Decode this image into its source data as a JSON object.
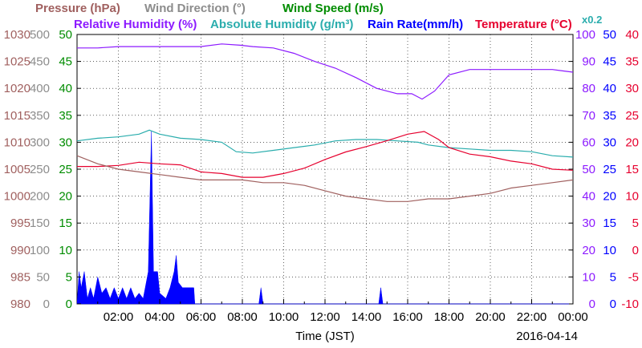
{
  "chart_data": {
    "type": "line",
    "headers": {
      "row1": [
        {
          "text": "Pressure (hPa)",
          "color": "#a0605f"
        },
        {
          "text": "Wind Direction (°)",
          "color": "#8c8c8c"
        },
        {
          "text": "Wind Speed (m/s)",
          "color": "#008c00"
        }
      ],
      "row2": [
        {
          "text": "Relative Humidity (%)",
          "color": "#8c1aff"
        },
        {
          "text": "Absolute Humidity (g/m³)",
          "color": "#2aadad"
        },
        {
          "text": "Rain Rate(mm/h)",
          "color": "#0000ff"
        },
        {
          "text": "Temperature (°C)",
          "color": "#e6002e"
        }
      ],
      "scale_note": {
        "text": "x0.2",
        "color": "#2aadad"
      }
    },
    "xlabel": "Time (JST)",
    "date": "2016-04-14",
    "x_ticks": [
      "02:00",
      "04:00",
      "06:00",
      "08:00",
      "10:00",
      "12:00",
      "14:00",
      "16:00",
      "18:00",
      "20:00",
      "22:00",
      "00:00"
    ],
    "x_range_hours": [
      0,
      24
    ],
    "axes": {
      "pressure": {
        "color": "#a0605f",
        "ticks": [
          "1030",
          "1025",
          "1020",
          "1015",
          "1010",
          "1005",
          "1000",
          "995",
          "990",
          "985",
          "980"
        ],
        "range": [
          980,
          1030
        ]
      },
      "wind_dir": {
        "color": "#8c8c8c",
        "ticks": [
          "500",
          "450",
          "400",
          "350",
          "300",
          "250",
          "200",
          "150",
          "100",
          "50",
          "0"
        ],
        "range": [
          0,
          500
        ]
      },
      "wind_speed": {
        "color": "#008c00",
        "ticks": [
          "50",
          "45",
          "40",
          "35",
          "30",
          "25",
          "20",
          "15",
          "10",
          "5",
          "0"
        ],
        "range": [
          0,
          50
        ]
      },
      "humidity": {
        "color": "#8c1aff",
        "ticks": [
          "100",
          "90",
          "80",
          "70",
          "60",
          "50",
          "40",
          "30",
          "20",
          "10",
          "0"
        ],
        "range": [
          0,
          100
        ]
      },
      "rain": {
        "color": "#0000ff",
        "ticks": [
          "50",
          "45",
          "40",
          "35",
          "30",
          "25",
          "20",
          "15",
          "10",
          "5",
          "0"
        ],
        "range": [
          0,
          50
        ]
      },
      "temp": {
        "color": "#e6002e",
        "ticks": [
          "40",
          "35",
          "30",
          "25",
          "20",
          "15",
          "10",
          "5",
          "0",
          "-5",
          "-10"
        ],
        "range": [
          -10,
          40
        ]
      }
    },
    "series": [
      {
        "name": "Relative Humidity",
        "axis": "humidity",
        "color": "#8c1aff",
        "points": [
          [
            0,
            95
          ],
          [
            1,
            95
          ],
          [
            2,
            95.5
          ],
          [
            3,
            95.5
          ],
          [
            4,
            95.5
          ],
          [
            6,
            95.5
          ],
          [
            7,
            96.5
          ],
          [
            7.9,
            96
          ],
          [
            8.5,
            95.5
          ],
          [
            9.5,
            95
          ],
          [
            10.5,
            93
          ],
          [
            11.5,
            90
          ],
          [
            12.5,
            87.5
          ],
          [
            13.5,
            84
          ],
          [
            14.5,
            80
          ],
          [
            15.5,
            78
          ],
          [
            16.2,
            78
          ],
          [
            16.7,
            76
          ],
          [
            17.3,
            79
          ],
          [
            18,
            85
          ],
          [
            19,
            87
          ],
          [
            20,
            87
          ],
          [
            21,
            87
          ],
          [
            22,
            87
          ],
          [
            23,
            87
          ],
          [
            23.5,
            86.5
          ],
          [
            24,
            86
          ]
        ]
      },
      {
        "name": "Absolute Humidity",
        "axis": "humidity",
        "color": "#2aadad",
        "points": [
          [
            0,
            60.5
          ],
          [
            1,
            61.5
          ],
          [
            2,
            62
          ],
          [
            3,
            63
          ],
          [
            3.5,
            64.5
          ],
          [
            4,
            63
          ],
          [
            5,
            61.5
          ],
          [
            6,
            61
          ],
          [
            7,
            60
          ],
          [
            7.7,
            56.5
          ],
          [
            8.5,
            56
          ],
          [
            9.5,
            57
          ],
          [
            10.5,
            58
          ],
          [
            11.5,
            59
          ],
          [
            12.5,
            60.5
          ],
          [
            13.5,
            61
          ],
          [
            14.5,
            61
          ],
          [
            15.5,
            60.5
          ],
          [
            16.5,
            60
          ],
          [
            17,
            59
          ],
          [
            18,
            58
          ],
          [
            19,
            57.5
          ],
          [
            20,
            57
          ],
          [
            21,
            57
          ],
          [
            22,
            56.5
          ],
          [
            23,
            55
          ],
          [
            24,
            54.5
          ]
        ]
      },
      {
        "name": "Temperature",
        "axis": "temp",
        "color": "#e6002e",
        "points": [
          [
            0,
            15.5
          ],
          [
            1,
            15.5
          ],
          [
            2,
            15.7
          ],
          [
            3,
            16.3
          ],
          [
            4,
            16
          ],
          [
            5,
            15.8
          ],
          [
            6,
            14.5
          ],
          [
            7,
            14.2
          ],
          [
            8,
            13.5
          ],
          [
            9,
            13.5
          ],
          [
            10,
            14.2
          ],
          [
            11,
            15.2
          ],
          [
            12,
            16.8
          ],
          [
            13,
            18.2
          ],
          [
            14,
            19.2
          ],
          [
            15,
            20.3
          ],
          [
            16,
            21.5
          ],
          [
            16.8,
            22
          ],
          [
            17.5,
            20.5
          ],
          [
            18,
            19
          ],
          [
            19,
            17.8
          ],
          [
            20,
            17.3
          ],
          [
            21,
            16.5
          ],
          [
            22,
            16
          ],
          [
            23,
            15
          ],
          [
            24,
            14.8
          ]
        ]
      },
      {
        "name": "Pressure",
        "axis": "pressure",
        "color": "#a0605f",
        "points": [
          [
            0,
            1007.5
          ],
          [
            1,
            1006
          ],
          [
            2,
            1005
          ],
          [
            3,
            1004.5
          ],
          [
            4,
            1004
          ],
          [
            5,
            1003.5
          ],
          [
            6,
            1003
          ],
          [
            7,
            1003
          ],
          [
            8,
            1003
          ],
          [
            9,
            1002.5
          ],
          [
            10,
            1002.5
          ],
          [
            11,
            1002
          ],
          [
            12,
            1001
          ],
          [
            13,
            1000
          ],
          [
            14,
            999.5
          ],
          [
            15,
            999
          ],
          [
            16,
            999
          ],
          [
            17,
            999.5
          ],
          [
            18,
            999.5
          ],
          [
            19,
            1000
          ],
          [
            20,
            1000.5
          ],
          [
            21,
            1001.5
          ],
          [
            22,
            1002
          ],
          [
            23,
            1002.5
          ],
          [
            24,
            1003
          ]
        ]
      }
    ],
    "rain_bars": {
      "axis": "rain",
      "color": "#0000ff",
      "points": [
        [
          0.0,
          0
        ],
        [
          0.1,
          6
        ],
        [
          0.2,
          3
        ],
        [
          0.35,
          6
        ],
        [
          0.5,
          1
        ],
        [
          0.65,
          3
        ],
        [
          0.8,
          1
        ],
        [
          1.0,
          5
        ],
        [
          1.2,
          2
        ],
        [
          1.4,
          3
        ],
        [
          1.6,
          1
        ],
        [
          1.8,
          3
        ],
        [
          2.0,
          1
        ],
        [
          2.2,
          3
        ],
        [
          2.4,
          1
        ],
        [
          2.6,
          3
        ],
        [
          2.8,
          1
        ],
        [
          3.0,
          2
        ],
        [
          3.2,
          1
        ],
        [
          3.3,
          3
        ],
        [
          3.45,
          6
        ],
        [
          3.6,
          32
        ],
        [
          3.7,
          6
        ],
        [
          3.8,
          6
        ],
        [
          3.9,
          6
        ],
        [
          4.0,
          2
        ],
        [
          4.3,
          1
        ],
        [
          4.5,
          3
        ],
        [
          4.7,
          6
        ],
        [
          4.8,
          9
        ],
        [
          4.9,
          4
        ],
        [
          5.1,
          3
        ],
        [
          5.3,
          3
        ],
        [
          5.5,
          3
        ],
        [
          5.65,
          3
        ],
        [
          5.7,
          0
        ],
        [
          8.8,
          0
        ],
        [
          8.9,
          3
        ],
        [
          9.0,
          0
        ],
        [
          14.6,
          0
        ],
        [
          14.7,
          3
        ],
        [
          14.8,
          0
        ],
        [
          24,
          0
        ]
      ]
    }
  }
}
